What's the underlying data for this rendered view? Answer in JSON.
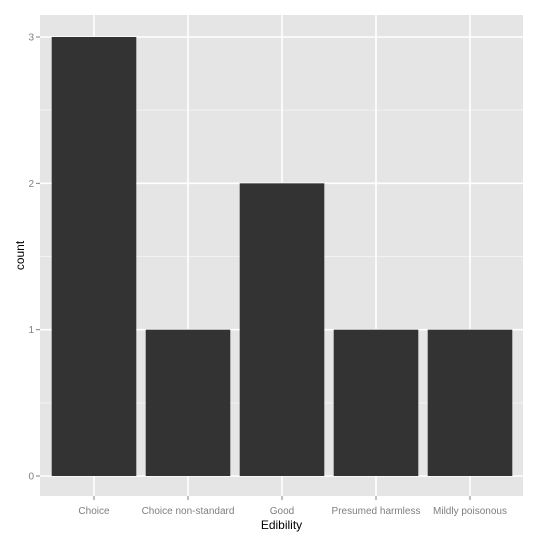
{
  "chart_data": {
    "type": "bar",
    "categories": [
      "Choice",
      "Choice non-standard",
      "Good",
      "Presumed harmless",
      "Mildly poisonous"
    ],
    "values": [
      3,
      1,
      2,
      1,
      1
    ],
    "title": "",
    "xlabel": "Edibility",
    "ylabel": "count",
    "ylim": [
      0,
      3
    ],
    "yticks": [
      0,
      1,
      2,
      3
    ],
    "grid": true,
    "legend": "none",
    "colors": {
      "bar": "#333333",
      "panel_background": "#e5e5e5",
      "major_grid": "#ffffff",
      "minor_grid": "#f2f2f2",
      "tick_text": "#7f7f7f",
      "axis_title": "#000000"
    }
  }
}
